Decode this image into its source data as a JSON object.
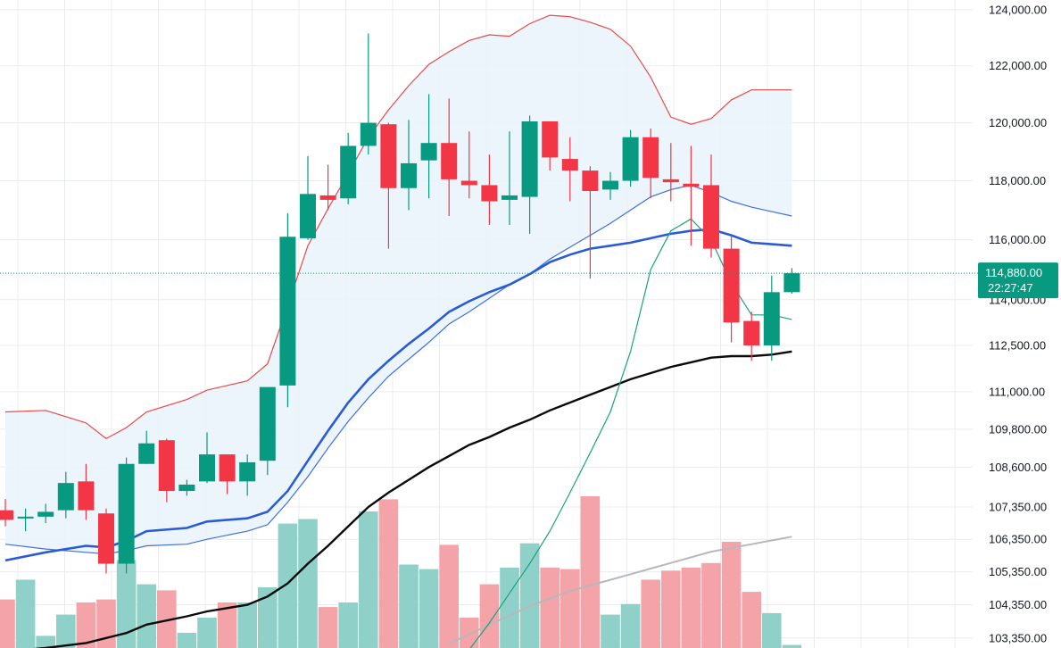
{
  "colors": {
    "up": "#26a69a",
    "up_body": "#089981",
    "down": "#f23645",
    "up_volume": "#8fd1c8",
    "down_volume": "#f4a3a8",
    "bb_fill": "#eaf3fb",
    "bb_band": "#e84a4a",
    "ma_thick_blue": "#2a5bd7",
    "ma_thin_blue": "#3f6fe0",
    "ma_black": "#0b0b0b",
    "ma_green": "#1aa37e",
    "ma_gray": "#b8b8b8",
    "grid": "#e9ecef",
    "current_price_line": "#089981",
    "axis_text": "#131722"
  },
  "price_tag": {
    "price": "114,880.00",
    "countdown": "22:27:47"
  },
  "chart_data": {
    "type": "candlestick",
    "y_axis_labels": [
      "124,000.00",
      "122,000.00",
      "120,000.00",
      "118,000.00",
      "116,000.00",
      "114,000.00",
      "112,500.00",
      "111,000.00",
      "109,800.00",
      "108,600.00",
      "107,350.00",
      "106,350.00",
      "105,350.00",
      "104,350.00",
      "103,350.00"
    ],
    "y_tick_values": [
      124000,
      122000,
      120000,
      118000,
      116000,
      114000,
      112500,
      111000,
      109800,
      108600,
      107350,
      106350,
      105350,
      104350,
      103350
    ],
    "y_axis_scale": "log",
    "ylim": [
      103050,
      124350
    ],
    "current_price": 114880,
    "candles": [
      {
        "o": 107250,
        "h": 107600,
        "l": 106750,
        "c": 106950
      },
      {
        "o": 107000,
        "h": 107300,
        "l": 106600,
        "c": 107050
      },
      {
        "o": 107050,
        "h": 107450,
        "l": 106850,
        "c": 107200
      },
      {
        "o": 107250,
        "h": 108450,
        "l": 107000,
        "c": 108100
      },
      {
        "o": 108150,
        "h": 108700,
        "l": 106950,
        "c": 107250
      },
      {
        "o": 107150,
        "h": 107300,
        "l": 105300,
        "c": 105600
      },
      {
        "o": 105600,
        "h": 108900,
        "l": 105300,
        "c": 108700
      },
      {
        "o": 108700,
        "h": 109750,
        "l": 108700,
        "c": 109350
      },
      {
        "o": 109450,
        "h": 109500,
        "l": 107500,
        "c": 107850
      },
      {
        "o": 107850,
        "h": 108200,
        "l": 107700,
        "c": 108050
      },
      {
        "o": 108150,
        "h": 109700,
        "l": 108100,
        "c": 109000
      },
      {
        "o": 109000,
        "h": 109000,
        "l": 107750,
        "c": 108150
      },
      {
        "o": 108150,
        "h": 109000,
        "l": 107700,
        "c": 108750
      },
      {
        "o": 108800,
        "h": 111100,
        "l": 108350,
        "c": 111150
      },
      {
        "o": 111200,
        "h": 116900,
        "l": 110500,
        "c": 116100
      },
      {
        "o": 116050,
        "h": 118850,
        "l": 116000,
        "c": 117550
      },
      {
        "o": 117500,
        "h": 118550,
        "l": 117000,
        "c": 117350
      },
      {
        "o": 117400,
        "h": 119650,
        "l": 117200,
        "c": 119200
      },
      {
        "o": 119200,
        "h": 123150,
        "l": 118900,
        "c": 120000
      },
      {
        "o": 119950,
        "h": 120000,
        "l": 115700,
        "c": 117750
      },
      {
        "o": 117750,
        "h": 120100,
        "l": 117000,
        "c": 118600
      },
      {
        "o": 118700,
        "h": 121000,
        "l": 117400,
        "c": 119300
      },
      {
        "o": 119300,
        "h": 120850,
        "l": 116800,
        "c": 118050
      },
      {
        "o": 118000,
        "h": 119700,
        "l": 117400,
        "c": 117850
      },
      {
        "o": 117850,
        "h": 118900,
        "l": 116500,
        "c": 117300
      },
      {
        "o": 117350,
        "h": 119700,
        "l": 116500,
        "c": 117500
      },
      {
        "o": 117450,
        "h": 120250,
        "l": 116200,
        "c": 120050
      },
      {
        "o": 120050,
        "h": 120050,
        "l": 118350,
        "c": 118800
      },
      {
        "o": 118750,
        "h": 119500,
        "l": 117300,
        "c": 118350
      },
      {
        "o": 118350,
        "h": 118500,
        "l": 114700,
        "c": 117650
      },
      {
        "o": 117700,
        "h": 118300,
        "l": 117350,
        "c": 118000
      },
      {
        "o": 118000,
        "h": 119750,
        "l": 117800,
        "c": 119500
      },
      {
        "o": 119500,
        "h": 119800,
        "l": 117400,
        "c": 118100
      },
      {
        "o": 118050,
        "h": 119300,
        "l": 117300,
        "c": 117950
      },
      {
        "o": 117900,
        "h": 119200,
        "l": 115800,
        "c": 117800
      },
      {
        "o": 117850,
        "h": 118900,
        "l": 115400,
        "c": 115700
      },
      {
        "o": 115700,
        "h": 116100,
        "l": 112600,
        "c": 113250
      },
      {
        "o": 113300,
        "h": 113600,
        "l": 112000,
        "c": 112500
      },
      {
        "o": 112500,
        "h": 114800,
        "l": 112000,
        "c": 114250
      },
      {
        "o": 114250,
        "h": 115050,
        "l": 114200,
        "c": 114880
      }
    ],
    "volume_relative": [
      0.32,
      0.45,
      0.08,
      0.22,
      0.3,
      0.32,
      0.58,
      0.42,
      0.38,
      0.1,
      0.2,
      0.3,
      0.3,
      0.4,
      0.82,
      0.85,
      0.27,
      0.3,
      0.9,
      0.98,
      0.55,
      0.52,
      0.68,
      0.2,
      0.42,
      0.53,
      0.69,
      0.53,
      0.52,
      1.0,
      0.22,
      0.29,
      0.45,
      0.51,
      0.53,
      0.56,
      0.7,
      0.37,
      0.23,
      0.02
    ],
    "bollinger_upper": [
      110350,
      null,
      110400,
      null,
      110000,
      109500,
      109850,
      110350,
      null,
      110750,
      111050,
      null,
      111350,
      111900,
      113800,
      115800,
      117050,
      118250,
      119500,
      120450,
      121300,
      122050,
      122500,
      122900,
      123100,
      123050,
      123500,
      123800,
      123750,
      123550,
      123300,
      122700,
      121600,
      120200,
      119950,
      120150,
      120800,
      121150,
      121150,
      121150
    ],
    "bb_thick_blue": [
      105700,
      null,
      105950,
      null,
      106150,
      106100,
      106300,
      106600,
      null,
      106700,
      106900,
      null,
      107000,
      107200,
      107850,
      108800,
      109750,
      110650,
      111400,
      112000,
      112550,
      113050,
      113600,
      113950,
      114250,
      114500,
      114850,
      115250,
      115500,
      115700,
      115800,
      115900,
      116050,
      116200,
      116300,
      116350,
      116150,
      115900,
      115850,
      115800
    ],
    "bb_lower_thin": [
      106200,
      null,
      106050,
      null,
      105950,
      105900,
      106000,
      106150,
      null,
      106200,
      106350,
      null,
      106600,
      106800,
      107500,
      108300,
      109200,
      110050,
      110800,
      111500,
      112050,
      112600,
      113200,
      113600,
      114050,
      114500,
      114850,
      115350,
      115750,
      116150,
      116550,
      117000,
      117450,
      117700,
      117850,
      117600,
      117300,
      117100,
      116950,
      116800
    ],
    "ma_black": [
      102950,
      null,
      103050,
      null,
      103200,
      103350,
      103500,
      103750,
      null,
      104000,
      104150,
      null,
      104350,
      104600,
      105000,
      105600,
      106150,
      106750,
      107350,
      107800,
      108200,
      108600,
      108950,
      109300,
      109550,
      109850,
      110100,
      110400,
      110650,
      110900,
      111150,
      111400,
      111600,
      111800,
      111950,
      112100,
      112150,
      112150,
      112200,
      112300
    ],
    "ma_green": [
      null,
      null,
      null,
      null,
      null,
      null,
      null,
      null,
      null,
      null,
      null,
      null,
      null,
      null,
      null,
      null,
      null,
      null,
      null,
      null,
      null,
      null,
      null,
      103000,
      103800,
      104700,
      105600,
      106600,
      107800,
      109050,
      110350,
      112300,
      115000,
      116300,
      116700,
      116000,
      114550,
      113500,
      113500,
      113350
    ],
    "vol_ma_gray": [
      null,
      null,
      null,
      null,
      null,
      null,
      null,
      null,
      null,
      null,
      null,
      null,
      null,
      null,
      null,
      null,
      null,
      null,
      null,
      null,
      null,
      null,
      0.0,
      0.05,
      0.1,
      0.15,
      0.2,
      0.24,
      0.28,
      0.31,
      0.34,
      0.37,
      0.4,
      0.43,
      0.46,
      0.49,
      0.51,
      0.53,
      0.55,
      0.57
    ]
  }
}
